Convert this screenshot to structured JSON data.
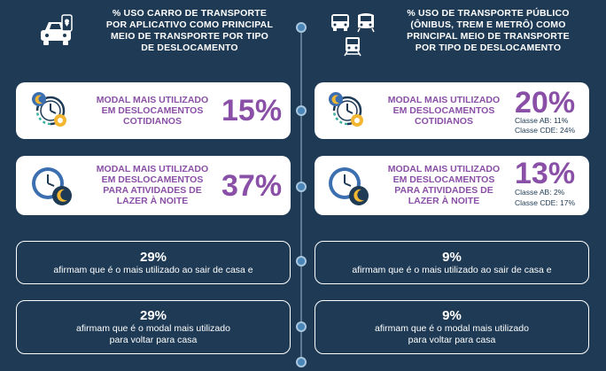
{
  "left": {
    "title_lines": [
      "% USO CARRO DE TRANSPORTE",
      "POR APLICATIVO COMO PRINCIPAL",
      "MEIO DE TRANSPORTE POR TIPO",
      "DE DESLOCAMENTO"
    ],
    "cards": [
      {
        "label_lines": [
          "MODAL MAIS UTILIZADO",
          "EM DESLOCAMENTOS",
          "COTIDIANOS"
        ],
        "value": "15%"
      },
      {
        "label_lines": [
          "MODAL MAIS UTILIZADO",
          "EM DESLOCAMENTOS",
          "PARA ATIVIDADES DE",
          "LAZER À NOITE"
        ],
        "value": "37%"
      }
    ],
    "boxes": [
      {
        "value": "29%",
        "text_lines": [
          "afirmam que é o mais utilizado ao sair de casa e"
        ]
      },
      {
        "value": "29%",
        "text_lines": [
          "afirmam que é o modal mais utilizado",
          "para voltar para casa"
        ]
      }
    ]
  },
  "right": {
    "title_lines": [
      "% USO DE TRANSPORTE PÚBLICO",
      "(ÔNIBUS, TREM E METRÔ) COMO",
      "PRINCIPAL MEIO DE TRANSPORTE",
      "POR TIPO DE DESLOCAMENTO"
    ],
    "cards": [
      {
        "label_lines": [
          "MODAL MAIS UTILIZADO",
          "EM DESLOCAMENTOS",
          "COTIDIANOS"
        ],
        "value": "20%",
        "classes": [
          {
            "label": "Classe AB:",
            "value": "11%"
          },
          {
            "label": "Classe CDE:",
            "value": "24%"
          }
        ]
      },
      {
        "label_lines": [
          "MODAL MAIS UTILIZADO",
          "EM DESLOCAMENTOS",
          "PARA ATIVIDADES DE",
          "LAZER À NOITE"
        ],
        "value": "13%",
        "classes": [
          {
            "label": "Classe AB:",
            "value": "2%"
          },
          {
            "label": "Classe CDE:",
            "value": "17%"
          }
        ]
      }
    ],
    "boxes": [
      {
        "value": "9%",
        "text_lines": [
          "afirmam que é o mais utilizado ao sair de casa e"
        ]
      },
      {
        "value": "9%",
        "text_lines": [
          "afirmam que é o modal mais utilizado",
          "para voltar para casa"
        ]
      }
    ]
  },
  "colors": {
    "background": "#1e3a55",
    "accent": "#8a4fa6",
    "card": "#ffffff",
    "icon_blue": "#3b6fb0",
    "icon_yellow": "#f2b632"
  },
  "icons": [
    "car-app-icon",
    "bus-icon",
    "metro-icon",
    "train-icon",
    "clock-day-icon",
    "clock-night-icon"
  ]
}
